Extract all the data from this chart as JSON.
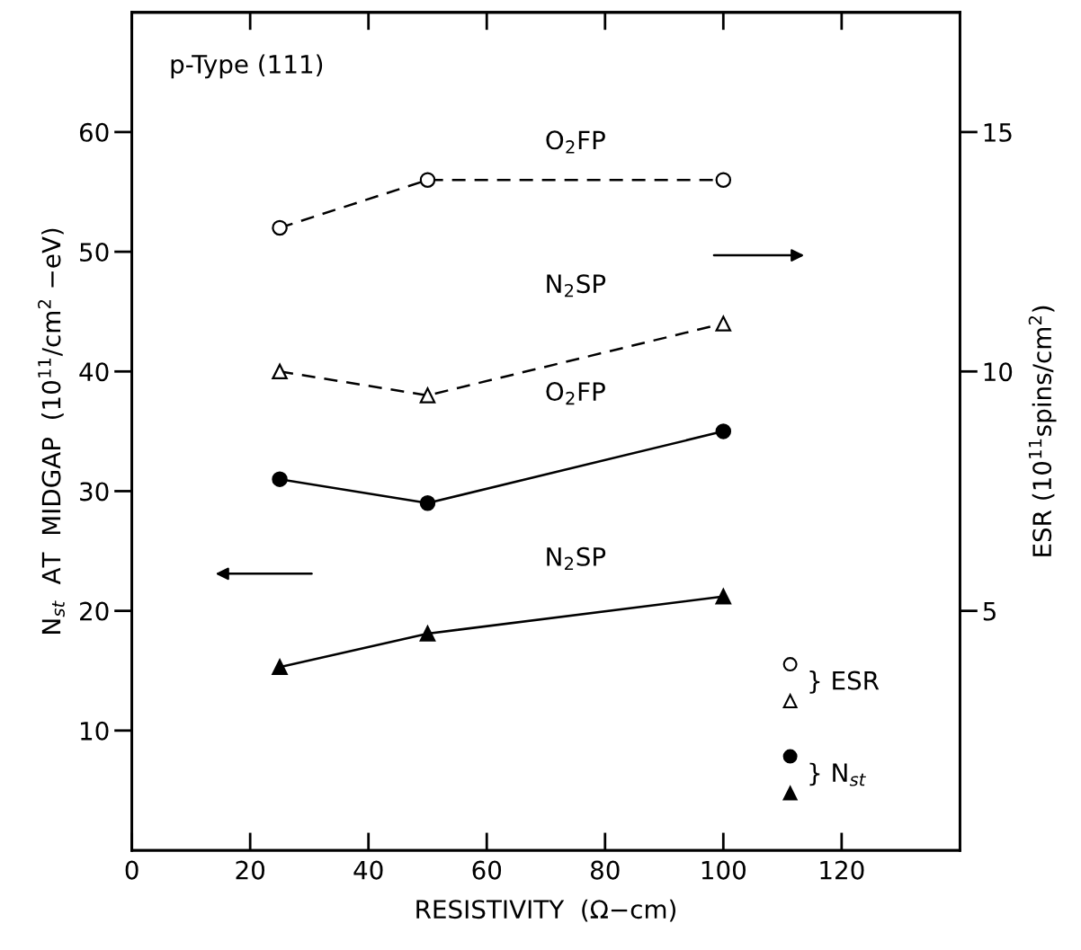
{
  "chart_data": {
    "type": "line",
    "title": "p-Type (111)",
    "xlabel": "RESISTIVITY  (Ω−cm)",
    "ylabel": "N$_{st}$  AT  MIDGAP  (10$^{11}$/cm$^{2}$ −eV)",
    "y2label": "ESR (10$^{11}$spins/cm$^{2}$)",
    "x": [
      25,
      50,
      100
    ],
    "series": [
      {
        "color": "#000000",
        "values": [
          13,
          14,
          14
        ],
        "axis": "y2",
        "marker": "circle",
        "line_style": "dashed"
      },
      {
        "color": "#000000",
        "values": [
          10,
          9.5,
          11
        ],
        "axis": "y2",
        "marker": "triangle",
        "line_style": "dashed"
      },
      {
        "color": "#000000",
        "values": [
          31,
          29,
          35
        ],
        "marker": "circle",
        "line_style": "solid"
      },
      {
        "color": "#000000",
        "values": [
          15.3,
          18.1,
          21.2
        ],
        "marker": "triangle",
        "line_style": "solid"
      }
    ],
    "xlim": [
      0,
      140
    ],
    "xticks": [
      0,
      20,
      40,
      60,
      80,
      100,
      120
    ],
    "ylim": [
      0,
      70
    ],
    "yticks": [
      10,
      20,
      30,
      40,
      50,
      60
    ],
    "y2lim": [
      0,
      17.5
    ],
    "y2ticks": [
      5,
      10,
      15
    ],
    "grid": false,
    "annotations": [
      "O$_{2}$FP",
      "N$_{2}$SP",
      "O$_{2}$FP",
      "N$_{2}$SP",
      "} ESR",
      "} N$_{st}$"
    ]
  }
}
